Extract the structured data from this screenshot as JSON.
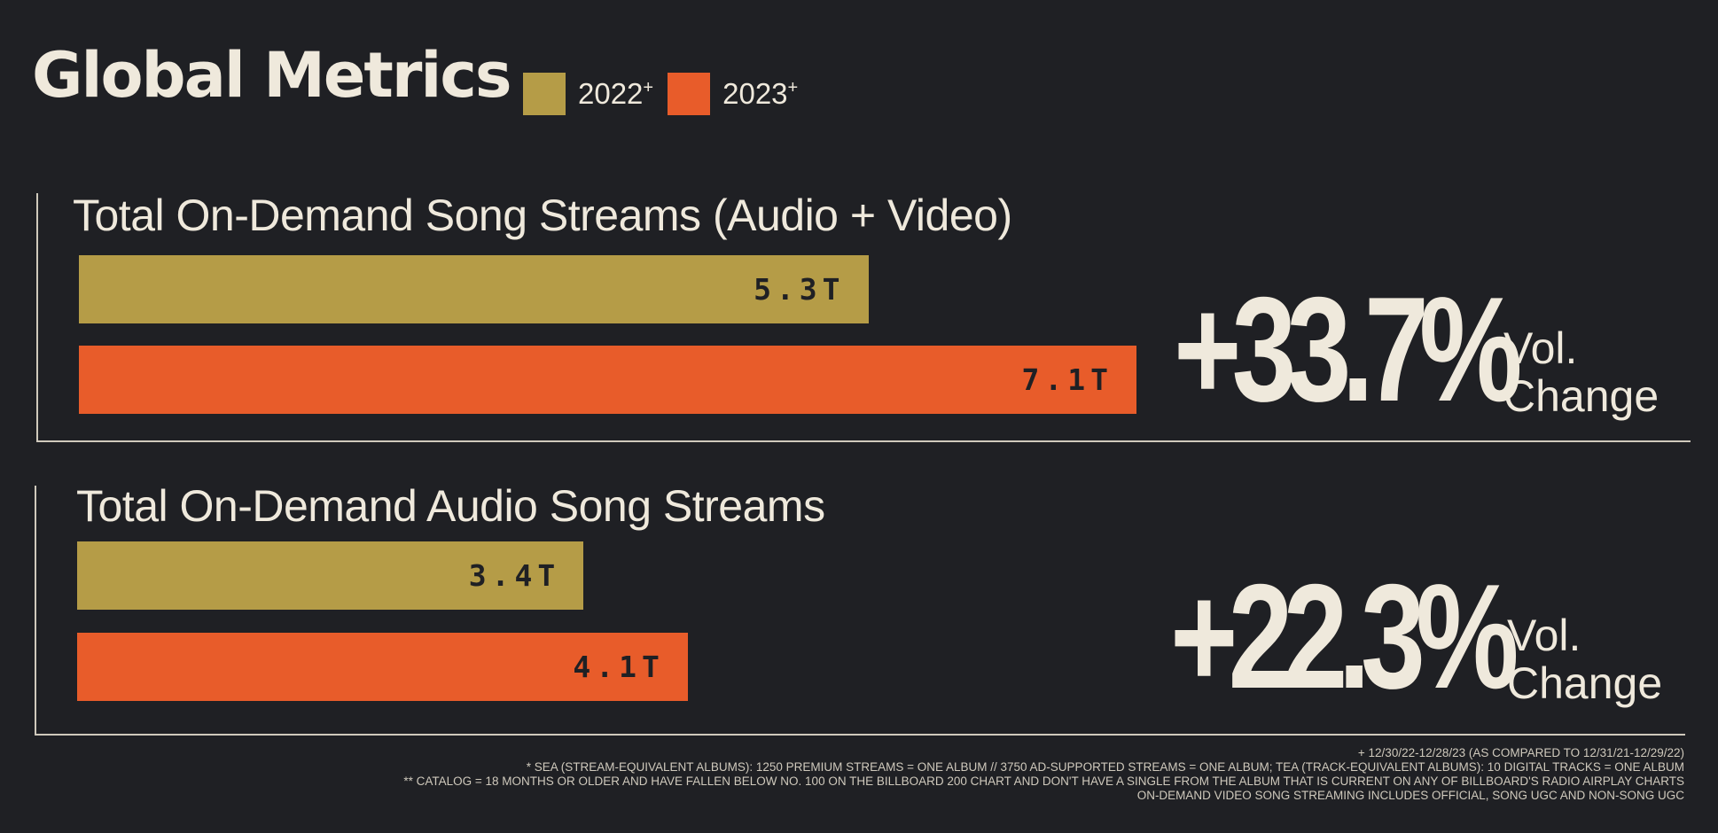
{
  "title": "Global Metrics",
  "legend": [
    {
      "label": "2022",
      "marker": "+",
      "color": "#b59c47"
    },
    {
      "label": "2023",
      "marker": "+",
      "color": "#e85c2a"
    }
  ],
  "chart_data": [
    {
      "type": "bar",
      "title": "Total On-Demand Song Streams (Audio + Video)",
      "categories": [
        "2022+",
        "2023+"
      ],
      "values": [
        5.3,
        7.1
      ],
      "value_labels": [
        "5.3T",
        "7.1T"
      ],
      "unit": "T",
      "orientation": "horizontal",
      "xlim": [
        0,
        7.1
      ],
      "change": "+33.7%",
      "change_label": [
        "Vol.",
        "Change"
      ]
    },
    {
      "type": "bar",
      "title": "Total On-Demand Audio Song Streams",
      "categories": [
        "2022+",
        "2023+"
      ],
      "values": [
        3.4,
        4.1
      ],
      "value_labels": [
        "3.4T",
        "4.1T"
      ],
      "unit": "T",
      "orientation": "horizontal",
      "xlim": [
        0,
        7.1
      ],
      "change": "+22.3%",
      "change_label": [
        "Vol.",
        "Change"
      ]
    }
  ],
  "footnotes": [
    "+ 12/30/22-12/28/23 (AS COMPARED TO 12/31/21-12/29/22)",
    "* SEA (STREAM-EQUIVALENT ALBUMS): 1250 PREMIUM STREAMS = ONE ALBUM // 3750 AD-SUPPORTED STREAMS = ONE ALBUM; TEA (TRACK-EQUIVALENT ALBUMS): 10 DIGITAL TRACKS = ONE ALBUM",
    "** CATALOG = 18 MONTHS OR OLDER AND HAVE FALLEN BELOW NO. 100 ON THE BILLBOARD 200 CHART AND DON'T HAVE A SINGLE FROM THE ALBUM THAT IS CURRENT ON ANY OF BILLBOARD'S RADIO AIRPLAY CHARTS",
    "ON-DEMAND VIDEO SONG STREAMING INCLUDES OFFICIAL, SONG UGC AND NON-SONG UGC"
  ]
}
